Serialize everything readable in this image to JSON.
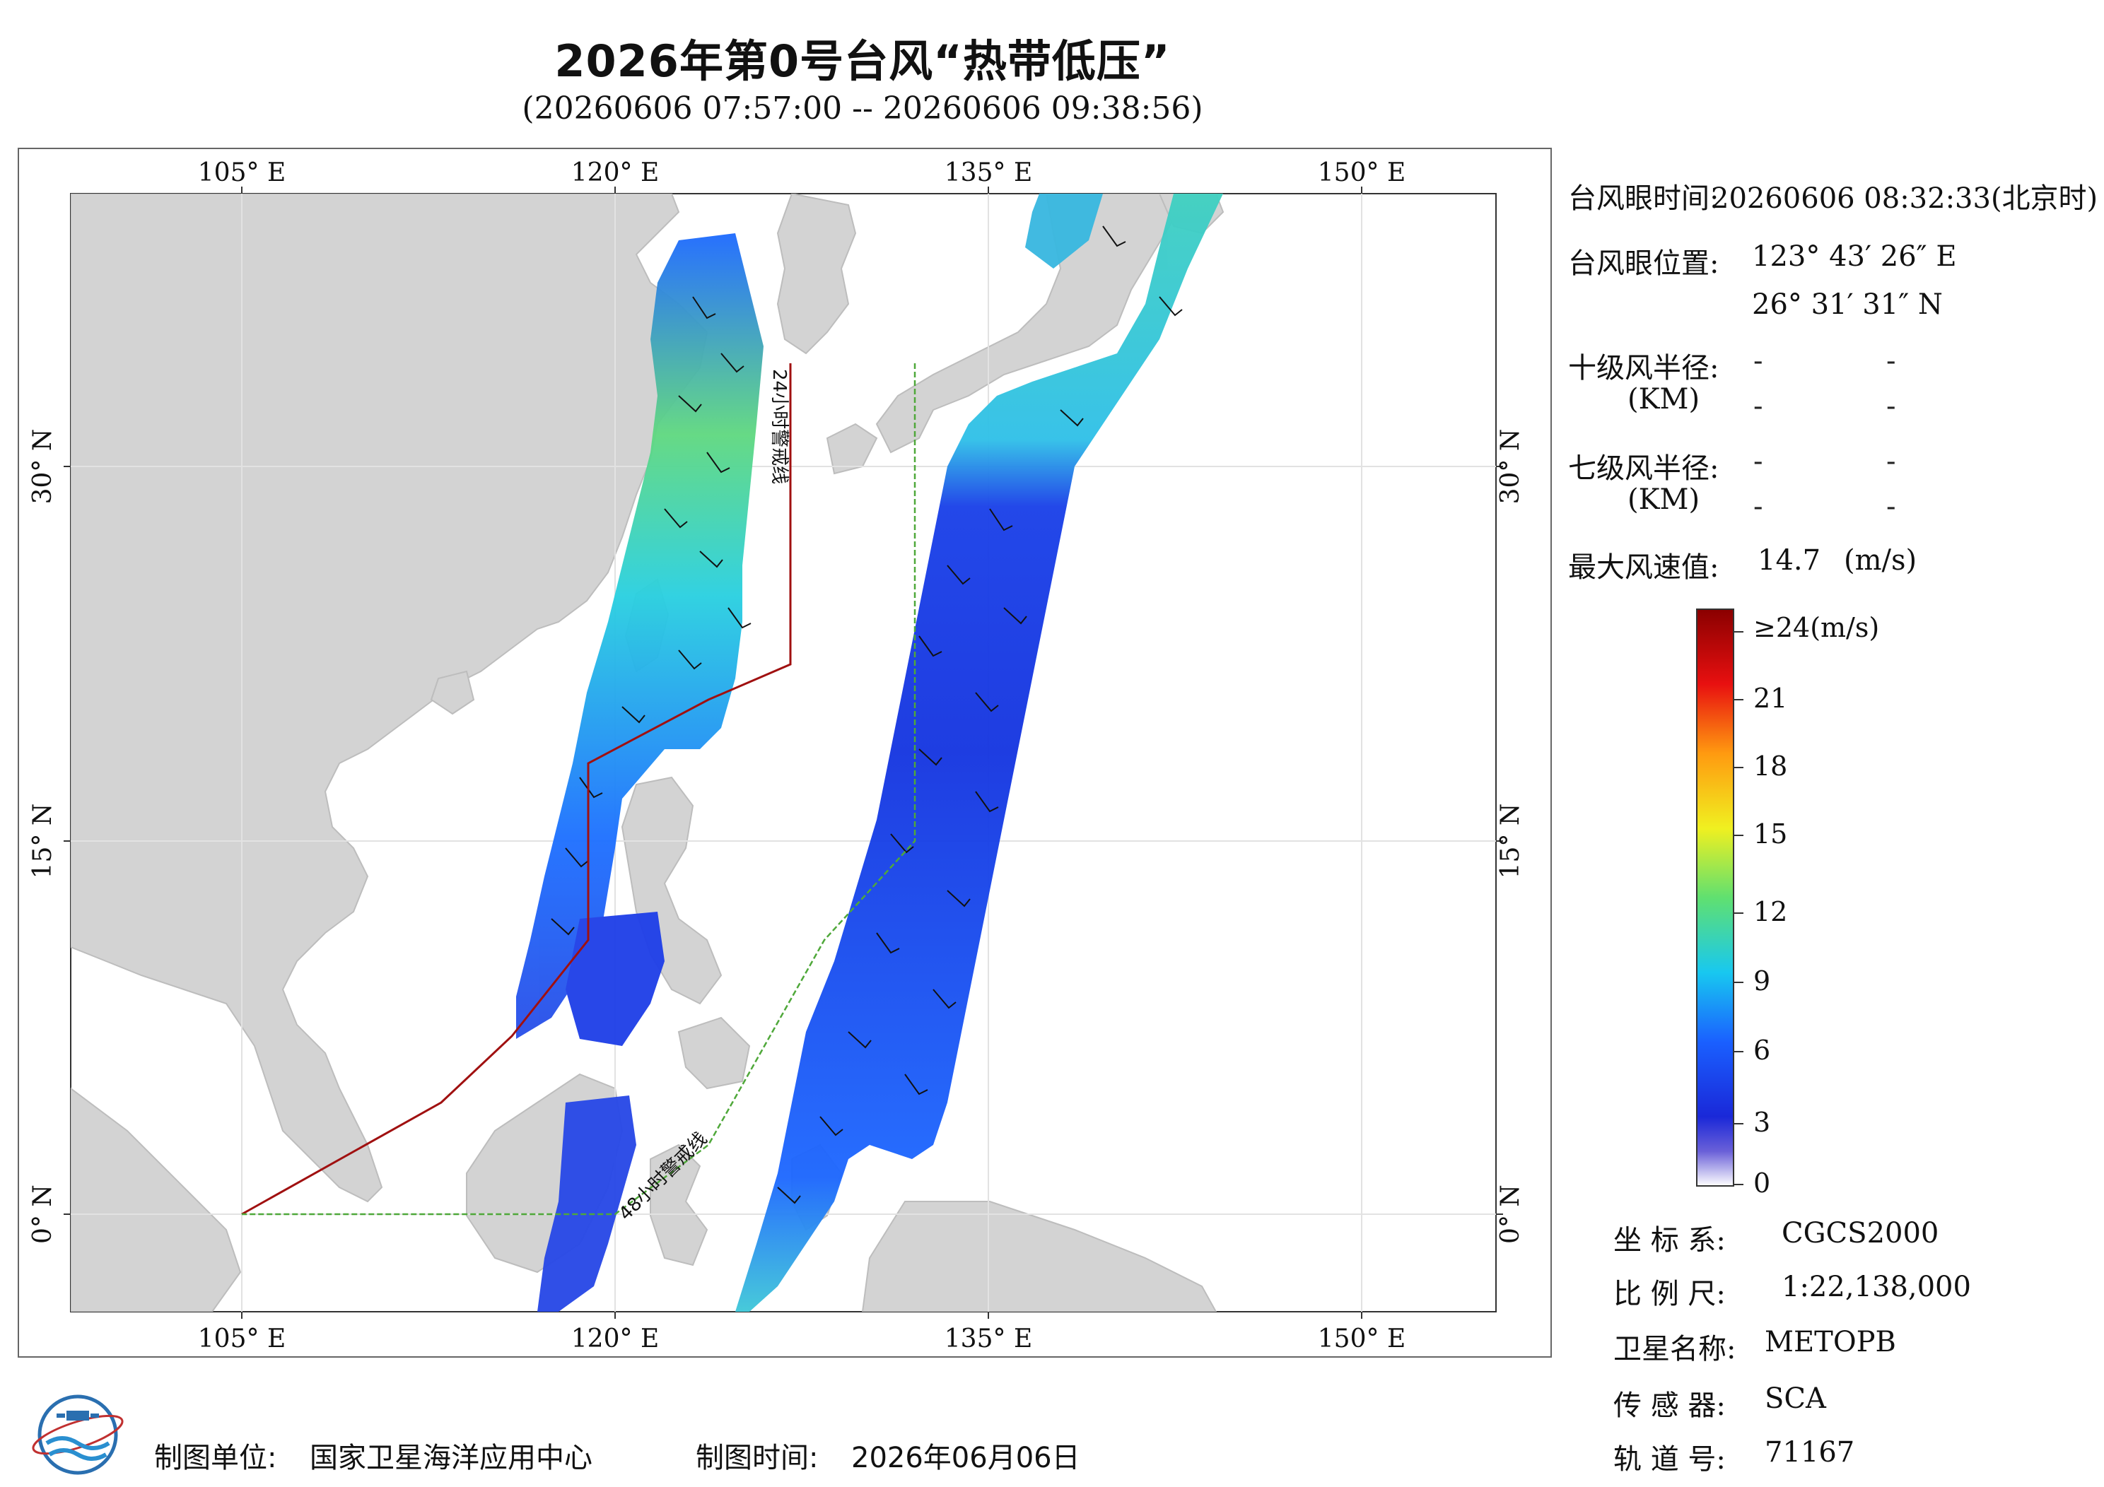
{
  "title": "2026年第0号台风“热带低压”",
  "subtitle": "(20260606 07:57:00 -- 20260606 09:38:56)",
  "map": {
    "lon_ticks": [
      "105° E",
      "120° E",
      "135° E",
      "150° E"
    ],
    "lat_ticks": [
      "30° N",
      "15° N",
      "0° N"
    ],
    "warning_24h": "24小时警戒线",
    "warning_48h": "48小时警戒线",
    "colors": {
      "land": "#d3d3d3",
      "ocean": "#ffffff",
      "warning24": "#a01010",
      "warning48": "#4fa83a"
    }
  },
  "info": {
    "eye_time_label": "台风眼时间:",
    "eye_time_value": "20260606 08:32:33(北京时)",
    "eye_pos_label": "台风眼位置:",
    "eye_lon": "123° 43′ 26″ E",
    "eye_lat": "26° 31′ 31″ N",
    "r10_label": "十级风半径:",
    "r7_label": "七级风半径:",
    "km_label": "(KM)",
    "dash": "-",
    "max_wind_label": "最大风速值:",
    "max_wind_value": "14.7",
    "max_wind_unit": "(m/s)"
  },
  "legend": {
    "ticks": [
      "≥24(m/s)",
      "21",
      "18",
      "15",
      "12",
      "9",
      "6",
      "3",
      "0"
    ],
    "colors": [
      "#ffffff",
      "#4a3fd8",
      "#1030e0",
      "#1a78ff",
      "#22d8e8",
      "#7ae060",
      "#f0f020",
      "#ff9a10",
      "#e81010",
      "#8a0000"
    ]
  },
  "meta": {
    "crs_label": "坐 标 系:",
    "crs_value": "CGCS2000",
    "scale_label": "比 例 尺:",
    "scale_value": "1:22,138,000",
    "sat_label": "卫星名称:",
    "sat_value": "METOPB",
    "sensor_label": "传 感 器:",
    "sensor_value": "SCA",
    "orbit_label": "轨 道 号:",
    "orbit_value": "71167"
  },
  "footer": {
    "maker_label": "制图单位:",
    "maker_value": "国家卫星海洋应用中心",
    "date_label": "制图时间:",
    "date_value": "2026年06月06日"
  }
}
